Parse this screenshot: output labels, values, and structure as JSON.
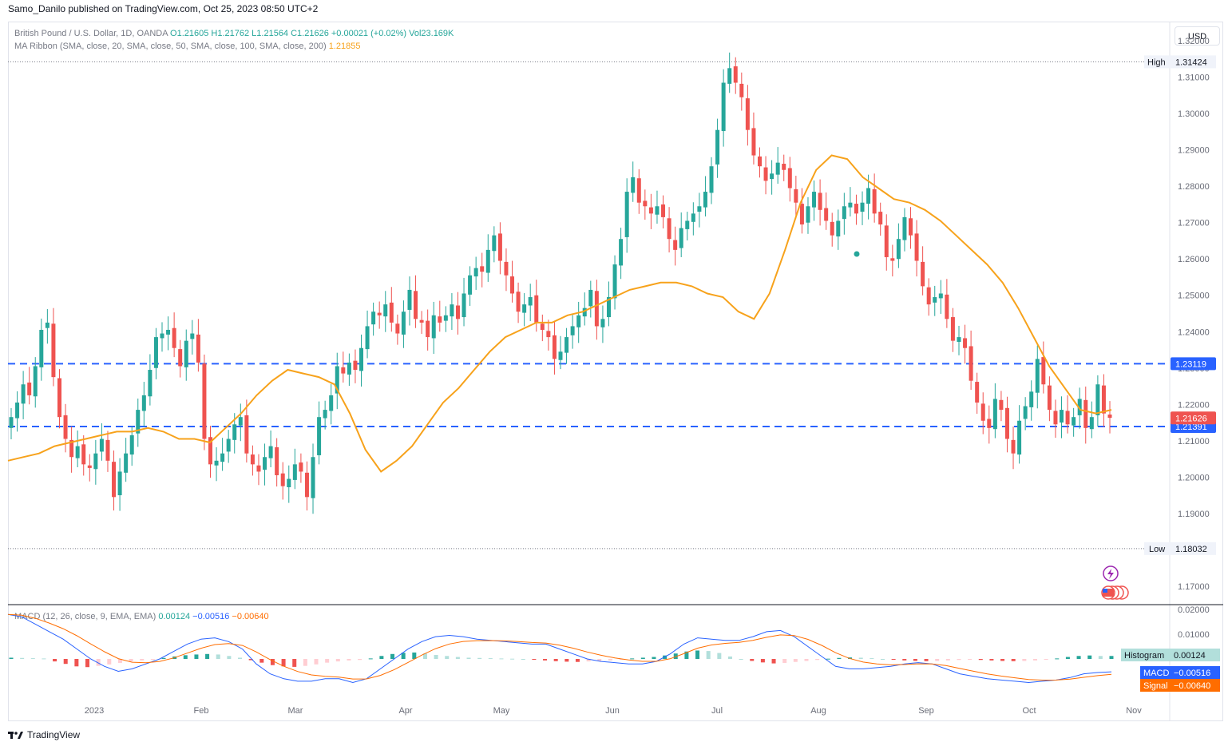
{
  "header": {
    "publisher": "Samo_Danilo published on TradingView.com, Oct 25, 2023 08:50 UTC+2"
  },
  "legend": {
    "symbol": "British Pound / U.S. Dollar, 1D, OANDA",
    "ohlc": "O1.21605 H1.21762 L1.21564 C1.21626 +0.00021 (+0.02%) Vol23.169K",
    "ma_label": "MA Ribbon (SMA, close, 20, SMA, close, 50, SMA, close, 100, SMA, close, 200)",
    "ma_value": "1.21855",
    "macd_label": "MACD (12, 26, close, 9, EMA, EMA)",
    "macd_hist": "0.00124",
    "macd_macd": "−0.00516",
    "macd_signal": "−0.00640"
  },
  "currency_button": "USD",
  "footer": {
    "brand": "TradingView"
  },
  "colors": {
    "up": "#26a69a",
    "down": "#ef5350",
    "ma": "#f7a21b",
    "level": "#2962ff",
    "macd": "#2962ff",
    "signal": "#ff6d00"
  },
  "chart_data": [
    {
      "type": "candlestick",
      "title": "British Pound / U.S. Dollar, 1D, OANDA",
      "y_ticks": [
        "1.32000",
        "1.31000",
        "1.30000",
        "1.29000",
        "1.28000",
        "1.27000",
        "1.26000",
        "1.25000",
        "1.24000",
        "1.23000",
        "1.22000",
        "1.21000",
        "1.20000",
        "1.19000",
        "1.17000"
      ],
      "ylim": [
        1.166,
        1.324
      ],
      "x_ticks": [
        "2023",
        "Feb",
        "Mar",
        "Apr",
        "May",
        "Jun",
        "Jul",
        "Aug",
        "Sep",
        "Oct",
        "Nov"
      ],
      "high": {
        "label": "High",
        "value": "1.31424"
      },
      "low": {
        "label": "Low",
        "value": "1.18032"
      },
      "levels": [
        {
          "value": "1.23119"
        },
        {
          "value": "1.21391"
        }
      ],
      "last_price": "1.21626",
      "closes": [
        1.2165,
        1.2205,
        1.2255,
        1.2225,
        1.2305,
        1.2405,
        1.2425,
        1.2275,
        1.2165,
        1.2105,
        1.2055,
        1.2085,
        1.2035,
        1.2025,
        1.2065,
        1.2105,
        1.2045,
        1.1945,
        1.2015,
        1.2065,
        1.2115,
        1.2185,
        1.2225,
        1.2295,
        1.2385,
        1.2395,
        1.2405,
        1.2355,
        1.2305,
        1.2375,
        1.2395,
        1.2315,
        1.2105,
        1.2035,
        1.2045,
        1.2065,
        1.2105,
        1.2145,
        1.2165,
        1.2065,
        1.2035,
        1.2015,
        1.2055,
        1.2085,
        1.2005,
        1.1975,
        1.1995,
        1.2035,
        1.2015,
        1.1945,
        1.2055,
        1.2165,
        1.2185,
        1.2225,
        1.2305,
        1.2285,
        1.2315,
        1.2295,
        1.2355,
        1.2415,
        1.2455,
        1.2445,
        1.2475,
        1.2425,
        1.2395,
        1.2455,
        1.2515,
        1.2435,
        1.2425,
        1.2385,
        1.2445,
        1.2425,
        1.2445,
        1.2475,
        1.2435,
        1.2505,
        1.2555,
        1.2575,
        1.2565,
        1.2625,
        1.2665,
        1.2595,
        1.2555,
        1.2505,
        1.2455,
        1.2475,
        1.2495,
        1.2425,
        1.2405,
        1.2385,
        1.2325,
        1.2345,
        1.2385,
        1.2415,
        1.2445,
        1.2465,
        1.2515,
        1.2415,
        1.2435,
        1.2495,
        1.2585,
        1.2655,
        1.2785,
        1.2825,
        1.2755,
        1.2745,
        1.2725,
        1.2745,
        1.2715,
        1.2655,
        1.2625,
        1.2685,
        1.2705,
        1.2725,
        1.2745,
        1.2785,
        1.2855,
        1.2955,
        1.3085,
        1.3125,
        1.3085,
        1.3045,
        1.2955,
        1.2885,
        1.2855,
        1.2815,
        1.2835,
        1.2865,
        1.2845,
        1.2795,
        1.2755,
        1.2695,
        1.2745,
        1.2785,
        1.2735,
        1.2705,
        1.2665,
        1.2705,
        1.2745,
        1.2755,
        1.2725,
        1.2755,
        1.2795,
        1.2725,
        1.2695,
        1.2605,
        1.2595,
        1.2655,
        1.2715,
        1.2665,
        1.2595,
        1.2525,
        1.2475,
        1.2495,
        1.2505,
        1.2435,
        1.2375,
        1.2385,
        1.2355,
        1.2265,
        1.2205,
        1.2155,
        1.2135,
        1.2215,
        1.2185,
        1.2105,
        1.2065,
        1.2155,
        1.2195,
        1.2235,
        1.2325,
        1.2255,
        1.2185,
        1.2145,
        1.2185,
        1.2145,
        1.2165,
        1.2215,
        1.2135,
        1.2165,
        1.2255,
        1.2175,
        1.2163
      ],
      "ma20": [
        1.2045,
        1.2055,
        1.2065,
        1.2085,
        1.2095,
        1.2105,
        1.2115,
        1.2125,
        1.2125,
        1.2135,
        1.2125,
        1.2105,
        1.2105,
        1.2095,
        1.2135,
        1.2175,
        1.2225,
        1.2265,
        1.2295,
        1.2285,
        1.2275,
        1.2255,
        1.2175,
        1.2075,
        1.2015,
        1.2045,
        1.2085,
        1.2145,
        1.2205,
        1.2245,
        1.2295,
        1.2345,
        1.2385,
        1.2405,
        1.2425,
        1.2425,
        1.2445,
        1.2455,
        1.2475,
        1.2495,
        1.2515,
        1.2525,
        1.2535,
        1.2535,
        1.2525,
        1.2505,
        1.2495,
        1.2455,
        1.2435,
        1.2505,
        1.2625,
        1.2755,
        1.2845,
        1.2885,
        1.2875,
        1.2825,
        1.2795,
        1.2765,
        1.2755,
        1.2735,
        1.2705,
        1.2665,
        1.2625,
        1.2585,
        1.2535,
        1.2465,
        1.2385,
        1.2305,
        1.2245,
        1.2185,
        1.2175,
        1.2185
      ]
    },
    {
      "type": "bar",
      "title": "MACD (12, 26, close, 9, EMA, EMA)",
      "y_ticks": [
        "0.02000",
        "0.01000",
        "−0.00516",
        "−0.00640"
      ],
      "series": [
        {
          "name": "Histogram"
        },
        {
          "name": "MACD"
        },
        {
          "name": "Signal"
        }
      ],
      "histogram_label": "Histogram",
      "histogram_value": "0.00124",
      "macd_label": "MACD",
      "macd_value": "−0.00516",
      "signal_label": "Signal",
      "signal_value": "−0.00640",
      "histogram": [
        0.0005,
        0.0004,
        0.0003,
        0.0002,
        -0.001,
        -0.002,
        -0.003,
        -0.0033,
        -0.0028,
        -0.0022,
        -0.0016,
        -0.001,
        -0.0006,
        -0.0002,
        0.0004,
        0.001,
        0.0015,
        0.0018,
        0.002,
        0.0018,
        0.0012,
        0.0005,
        -0.0005,
        -0.0015,
        -0.0025,
        -0.003,
        -0.0032,
        -0.0028,
        -0.0022,
        -0.0015,
        -0.001,
        -0.0006,
        -0.0004,
        0.0002,
        0.0012,
        0.002,
        0.0025,
        0.0026,
        0.0022,
        0.0016,
        0.0012,
        0.0008,
        0.0005,
        0.0004,
        0.0003,
        0.0002,
        0.0001,
        0.0,
        -0.0003,
        -0.0006,
        -0.0009,
        -0.0011,
        -0.0012,
        -0.001,
        -0.0008,
        -0.0006,
        -0.0002,
        0.0002,
        0.0005,
        0.0008,
        0.0014,
        0.0022,
        0.003,
        0.0034,
        0.0032,
        0.0024,
        0.001,
        0.0,
        -0.0008,
        -0.0014,
        -0.0018,
        -0.0016,
        -0.0012,
        -0.0008,
        -0.0004,
        0.0001,
        0.0004,
        0.0006,
        0.0005,
        0.0003,
        0.0,
        -0.0003,
        -0.0006,
        -0.0008,
        -0.0009,
        -0.0008,
        -0.0006,
        -0.0004,
        -0.0003,
        -0.0004,
        -0.0006,
        -0.0008,
        -0.0009,
        -0.0008,
        -0.0006,
        -0.0003,
        0.0002,
        0.0008,
        0.0012,
        0.0014,
        0.0012,
        0.0012
      ],
      "macd": [
        0.018,
        0.017,
        0.014,
        0.011,
        0.008,
        0.004,
        0.0,
        -0.003,
        -0.005,
        -0.004,
        -0.002,
        0.0,
        0.003,
        0.006,
        0.008,
        0.0085,
        0.007,
        0.004,
        -0.002,
        -0.006,
        -0.008,
        -0.009,
        -0.009,
        -0.008,
        -0.008,
        -0.0095,
        -0.008,
        -0.004,
        0.0,
        0.004,
        0.007,
        0.009,
        0.0095,
        0.009,
        0.008,
        0.0075,
        0.007,
        0.0065,
        0.006,
        0.006,
        0.004,
        0.002,
        0.0,
        -0.001,
        -0.0015,
        -0.002,
        -0.002,
        -0.001,
        0.002,
        0.006,
        0.0085,
        0.008,
        0.0075,
        0.0075,
        0.009,
        0.011,
        0.0115,
        0.009,
        0.005,
        0.001,
        -0.003,
        -0.004,
        -0.004,
        -0.0035,
        -0.003,
        -0.002,
        -0.0015,
        -0.002,
        -0.004,
        -0.006,
        -0.007,
        -0.008,
        -0.0085,
        -0.009,
        -0.0095,
        -0.009,
        -0.0085,
        -0.0075,
        -0.006,
        -0.0055,
        -0.0052
      ]
    }
  ]
}
